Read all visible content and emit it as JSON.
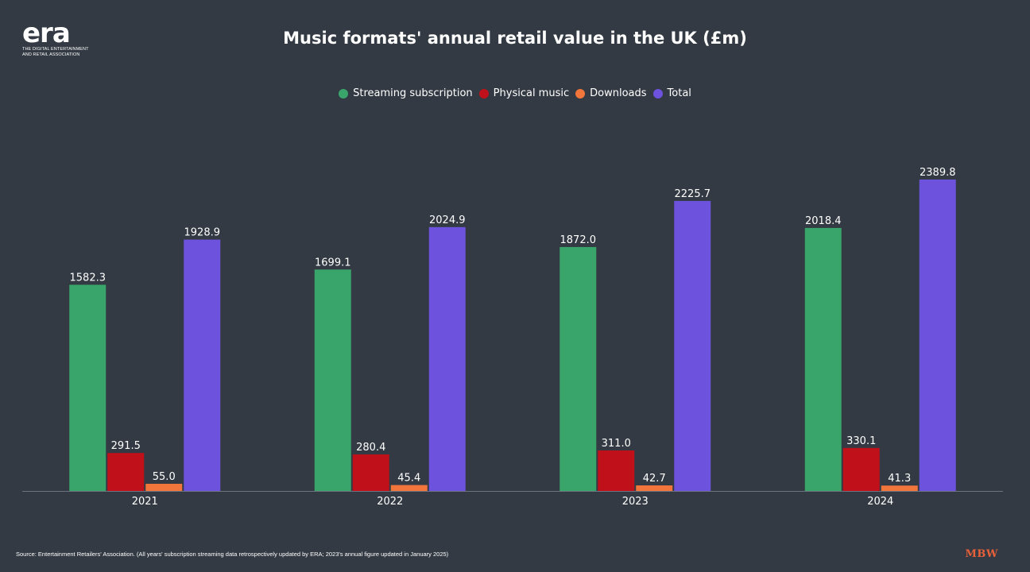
{
  "logo": {
    "mark": "era",
    "subtitle": "THE DIGITAL ENTERTAINMENT AND RETAIL ASSOCIATION"
  },
  "footer": {
    "source": "Source: Entertainment Retailers' Association. (All years' subscription streaming data retrospectively updated by ERA; 2023's annual figure updated in January 2025)",
    "brand": "MBW"
  },
  "chart_data": {
    "type": "bar",
    "title": "Music formats' annual retail value in the UK (£m)",
    "xlabel": "",
    "ylabel": "",
    "categories": [
      "2021",
      "2022",
      "2023",
      "2024"
    ],
    "series": [
      {
        "name": "Streaming subscription",
        "color": "#3aa56b",
        "values": [
          1582.3,
          1699.1,
          1872.0,
          2018.4
        ]
      },
      {
        "name": "Physical music",
        "color": "#c0101a",
        "values": [
          291.5,
          280.4,
          311.0,
          330.1
        ]
      },
      {
        "name": "Downloads",
        "color": "#f2763b",
        "values": [
          55.0,
          45.4,
          42.7,
          41.3
        ]
      },
      {
        "name": "Total",
        "color": "#6c52dc",
        "values": [
          1928.9,
          2024.9,
          2225.7,
          2389.8
        ]
      }
    ],
    "ylim": [
      0,
      2389.8
    ],
    "grid": false,
    "legend": "top-center",
    "data_labels": true
  }
}
